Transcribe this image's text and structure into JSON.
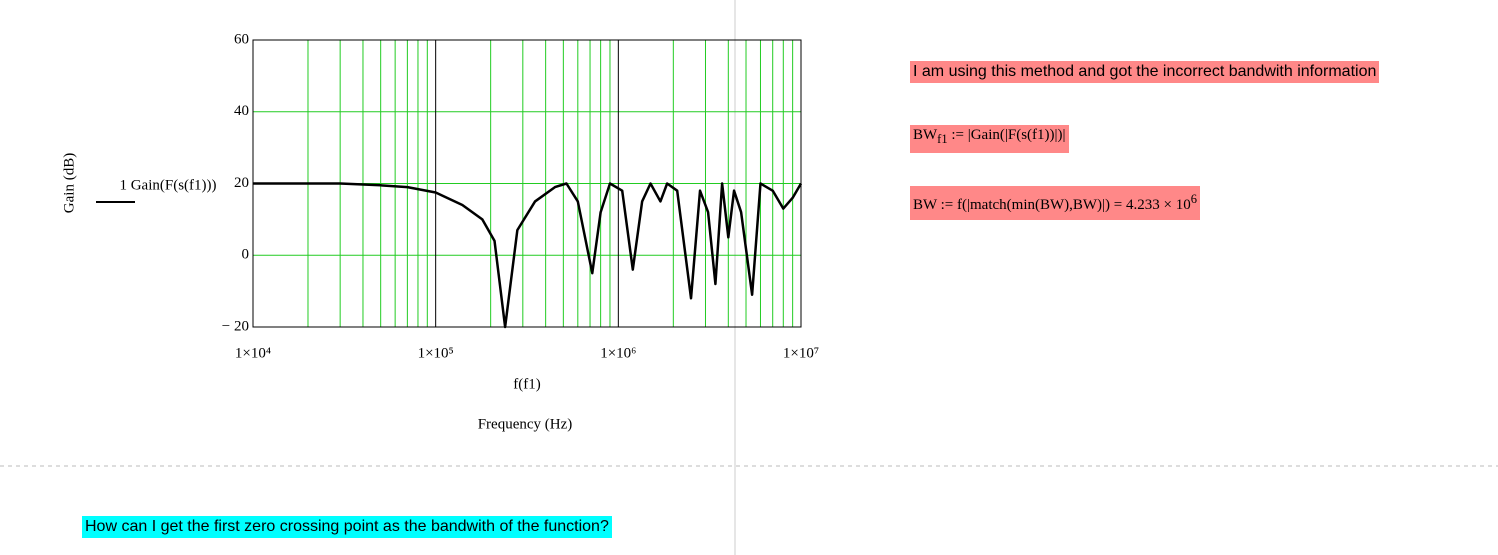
{
  "chart_data": {
    "type": "line",
    "y_label": "Gain (dB)",
    "x_expression": "f(f1)",
    "x_label": "Frequency (Hz)",
    "x_log": true,
    "xlim": [
      10000,
      10000000
    ],
    "xticks": [
      {
        "value": 10000,
        "label": "1×10⁴"
      },
      {
        "value": 100000,
        "label": "1×10⁵"
      },
      {
        "value": 1000000,
        "label": "1×10⁶"
      },
      {
        "value": 10000000,
        "label": "1×10⁷"
      }
    ],
    "ylim": [
      -20,
      60
    ],
    "yticks": [
      {
        "value": -20,
        "label": "− 20"
      },
      0,
      20,
      40,
      60
    ],
    "grid": true,
    "grid_color": "#22cc22",
    "minor_grid": true,
    "x": [
      10000,
      30000,
      50000,
      70000,
      100000,
      140000,
      180000,
      210000,
      240000,
      280000,
      350000,
      450000,
      520000,
      600000,
      720000,
      800000,
      900000,
      1050000,
      1200000,
      1350000,
      1500000,
      1700000,
      1850000,
      2100000,
      2500000,
      2800000,
      3100000,
      3400000,
      3700000,
      4000000,
      4300000,
      4700000,
      5400000,
      6000000,
      7000000,
      8000000,
      9000000,
      10000000
    ],
    "series": [
      {
        "name": "1 Gain(F(s(f1)))",
        "color": "#000000",
        "values": [
          20,
          20,
          19.5,
          19,
          17.5,
          14,
          10,
          4,
          -20,
          7,
          15,
          19,
          20,
          15,
          -5,
          12,
          20,
          18,
          -4,
          15,
          20,
          15,
          20,
          18,
          -12,
          18,
          12,
          -8,
          20,
          5,
          18,
          12,
          -11,
          20,
          18,
          13,
          16,
          20
        ]
      }
    ]
  },
  "notes": {
    "method": "I am using this method and got the incorrect bandwith information",
    "bw_f1": {
      "name": "BW",
      "subscript": "f1",
      "expr": ":=  |Gain(|F(s(f1))|)|"
    },
    "bw": {
      "expr": "BW := f(|match(min(BW),BW)|) = 4.233 × 10",
      "exponent": "6"
    },
    "question": "How can I get the first zero crossing point as the bandwith of the function?"
  }
}
